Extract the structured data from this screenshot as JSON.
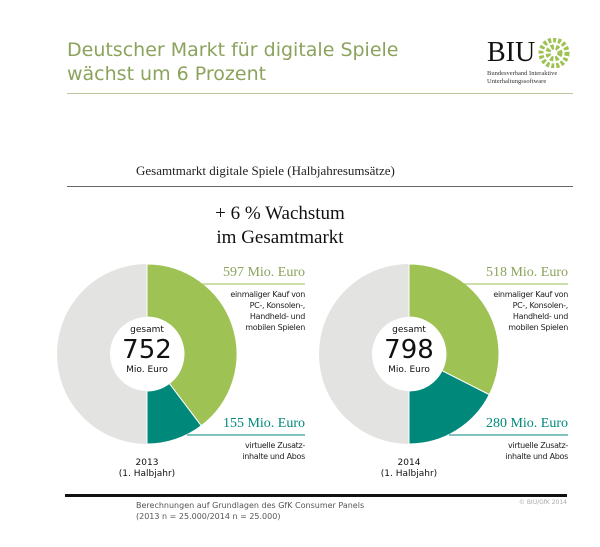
{
  "header": {
    "title_line1": "Deutscher Markt für digitale Spiele",
    "title_line2": "wächst um 6 Prozent",
    "logo": {
      "text": "BIU",
      "subtitle_line1": "Bundesverband Interaktive",
      "subtitle_line2": "Unterhaltungssoftware"
    }
  },
  "colors": {
    "green": "#9ec253",
    "teal": "#00897b",
    "gray": "#e3e4e1",
    "title": "#8ba35c"
  },
  "chart_data": {
    "type": "pie",
    "title": "Gesamtmarkt digitale Spiele (Halbjahresumsätze)",
    "annotation_line1": "+ 6 % Wachstum",
    "annotation_line2": "im Gesamtmarkt",
    "charts": [
      {
        "year": "2013",
        "period": "(1. Halbjahr)",
        "total_label": "gesamt",
        "total": "752",
        "total_unit": "Mio. Euro",
        "segments": [
          {
            "value": 597,
            "label": "597 Mio. Euro",
            "desc": [
              "einmaliger Kauf von",
              "PC-, Konsolen-,",
              "Handheld- und",
              "mobilen Spielen"
            ],
            "color": "#9ec253"
          },
          {
            "value": 155,
            "label": "155 Mio. Euro",
            "desc": [
              "virtuelle Zusatz-",
              "inhalte und Abos"
            ],
            "color": "#00897b"
          }
        ]
      },
      {
        "year": "2014",
        "period": "(1. Halbjahr)",
        "total_label": "gesamt",
        "total": "798",
        "total_unit": "Mio. Euro",
        "segments": [
          {
            "value": 518,
            "label": "518 Mio. Euro",
            "desc": [
              "einmaliger Kauf von",
              "PC-, Konsolen-,",
              "Handheld- und",
              "mobilen Spielen"
            ],
            "color": "#9ec253"
          },
          {
            "value": 280,
            "label": "280 Mio. Euro",
            "desc": [
              "virtuelle Zusatz-",
              "inhalte und Abos"
            ],
            "color": "#00897b"
          }
        ]
      }
    ]
  },
  "footer": {
    "note_line1": "Berechnungen auf Grundlagen des GfK Consumer Panels",
    "note_line2": "(2013 n = 25.000/2014 n = 25.000)",
    "copyright": "© BIU/GfK 2014"
  }
}
